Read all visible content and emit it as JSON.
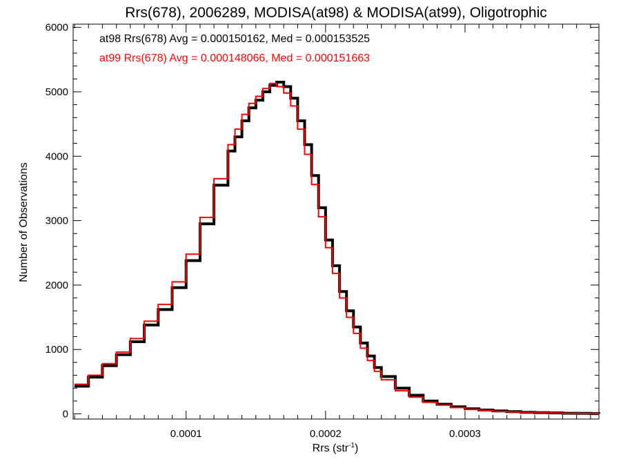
{
  "chart_data": {
    "type": "histogram",
    "title": "Rrs(678), 2006289, MODISA(at98) & MODISA(at99), Oligotrophic",
    "xlabel": "Rrs (str",
    "xlabel_exponent": "-1",
    "xlabel_close": ")",
    "ylabel": "Number of Observations",
    "xlim": [
      1.9e-05,
      0.000396
    ],
    "ylim": [
      -80,
      6050
    ],
    "x_ticks": [
      {
        "value": 0.0001,
        "label": "0.0001"
      },
      {
        "value": 0.0002,
        "label": "0.0002"
      },
      {
        "value": 0.0003,
        "label": "0.0003"
      }
    ],
    "y_ticks": [
      {
        "value": 0,
        "label": "0"
      },
      {
        "value": 1000,
        "label": "1000"
      },
      {
        "value": 2000,
        "label": "2000"
      },
      {
        "value": 3000,
        "label": "3000"
      },
      {
        "value": 4000,
        "label": "4000"
      },
      {
        "value": 5000,
        "label": "5000"
      },
      {
        "value": 6000,
        "label": "6000"
      }
    ],
    "grid": false,
    "legend_position": "top-left",
    "annotations": [
      {
        "text": "at98 Rrs(678) Avg = 0.000150162, Med = 0.000153525",
        "color": "#000000"
      },
      {
        "text": "at99 Rrs(678) Avg = 0.000148066, Med = 0.000151663",
        "color": "#ff0000"
      }
    ],
    "series": [
      {
        "color": "#000000",
        "points": [
          [
            2e-05,
            430
          ],
          [
            3e-05,
            570
          ],
          [
            4e-05,
            750
          ],
          [
            5e-05,
            920
          ],
          [
            6e-05,
            1120
          ],
          [
            7e-05,
            1380
          ],
          [
            8e-05,
            1620
          ],
          [
            9e-05,
            1960
          ],
          [
            0.0001,
            2380
          ],
          [
            0.00011,
            2950
          ],
          [
            0.00012,
            3550
          ],
          [
            0.00013,
            4080
          ],
          [
            0.000135,
            4300
          ],
          [
            0.00014,
            4550
          ],
          [
            0.000145,
            4750
          ],
          [
            0.00015,
            4870
          ],
          [
            0.000155,
            5000
          ],
          [
            0.00016,
            5100
          ],
          [
            0.000165,
            5150
          ],
          [
            0.00017,
            5080
          ],
          [
            0.000175,
            4900
          ],
          [
            0.00018,
            4550
          ],
          [
            0.000185,
            4180
          ],
          [
            0.00019,
            3700
          ],
          [
            0.000195,
            3200
          ],
          [
            0.0002,
            2700
          ],
          [
            0.000205,
            2300
          ],
          [
            0.00021,
            1900
          ],
          [
            0.000215,
            1600
          ],
          [
            0.00022,
            1350
          ],
          [
            0.000225,
            1100
          ],
          [
            0.00023,
            900
          ],
          [
            0.000235,
            720
          ],
          [
            0.00024,
            580
          ],
          [
            0.00025,
            400
          ],
          [
            0.00026,
            290
          ],
          [
            0.00027,
            200
          ],
          [
            0.00028,
            150
          ],
          [
            0.00029,
            110
          ],
          [
            0.0003,
            80
          ],
          [
            0.00031,
            60
          ],
          [
            0.00032,
            45
          ],
          [
            0.00033,
            35
          ],
          [
            0.00034,
            25
          ],
          [
            0.00035,
            20
          ],
          [
            0.00036,
            15
          ],
          [
            0.00037,
            10
          ],
          [
            0.00038,
            8
          ],
          [
            0.00039,
            5
          ],
          [
            0.000396,
            4
          ]
        ]
      },
      {
        "color": "#ff0000",
        "points": [
          [
            2e-05,
            460
          ],
          [
            3e-05,
            600
          ],
          [
            4e-05,
            780
          ],
          [
            5e-05,
            960
          ],
          [
            6e-05,
            1170
          ],
          [
            7e-05,
            1440
          ],
          [
            8e-05,
            1700
          ],
          [
            9e-05,
            2050
          ],
          [
            0.0001,
            2480
          ],
          [
            0.00011,
            3050
          ],
          [
            0.00012,
            3650
          ],
          [
            0.00013,
            4180
          ],
          [
            0.000135,
            4420
          ],
          [
            0.00014,
            4650
          ],
          [
            0.000145,
            4820
          ],
          [
            0.00015,
            4930
          ],
          [
            0.000155,
            5050
          ],
          [
            0.00016,
            5130
          ],
          [
            0.000165,
            5080
          ],
          [
            0.00017,
            4980
          ],
          [
            0.000175,
            4780
          ],
          [
            0.00018,
            4420
          ],
          [
            0.000185,
            4030
          ],
          [
            0.00019,
            3560
          ],
          [
            0.000195,
            3060
          ],
          [
            0.0002,
            2580
          ],
          [
            0.000205,
            2180
          ],
          [
            0.00021,
            1800
          ],
          [
            0.000215,
            1500
          ],
          [
            0.00022,
            1250
          ],
          [
            0.000225,
            1020
          ],
          [
            0.00023,
            830
          ],
          [
            0.000235,
            660
          ],
          [
            0.00024,
            530
          ],
          [
            0.00025,
            360
          ],
          [
            0.00026,
            260
          ],
          [
            0.00027,
            180
          ],
          [
            0.00028,
            135
          ],
          [
            0.00029,
            100
          ],
          [
            0.0003,
            72
          ],
          [
            0.00031,
            54
          ],
          [
            0.00032,
            40
          ],
          [
            0.00033,
            31
          ],
          [
            0.00034,
            23
          ],
          [
            0.00035,
            18
          ],
          [
            0.00036,
            13
          ],
          [
            0.00037,
            9
          ],
          [
            0.00038,
            7
          ],
          [
            0.00039,
            5
          ],
          [
            0.000396,
            4
          ]
        ]
      }
    ]
  }
}
